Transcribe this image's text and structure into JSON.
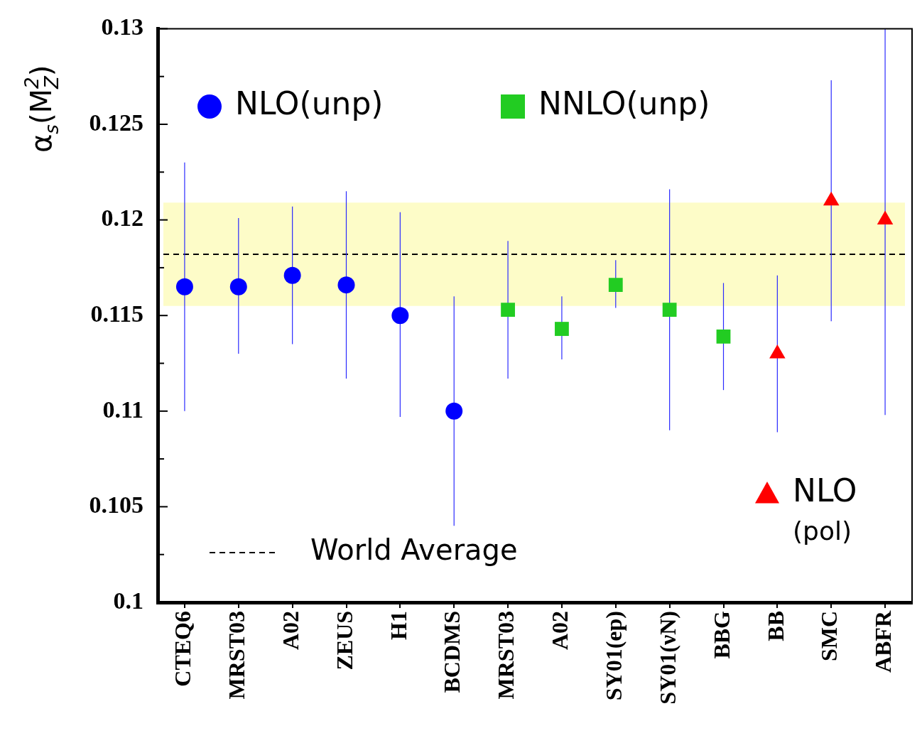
{
  "chart_data": {
    "type": "scatter",
    "ylabel": "α$_{s}$(M$_{Z}$$^{2}$)",
    "categories": [
      "CTEQ6",
      "MRST03",
      "A02",
      "ZEUS",
      "H1",
      "BCDMS",
      "MRST03",
      "A02",
      "SY01(ep)",
      "SY01(νN)",
      "BBG",
      "BB",
      "SMC",
      "ABFR"
    ],
    "series": [
      {
        "name": "NLO(unp)",
        "color": "#0000ff",
        "marker": "circle",
        "values": [
          0.1165,
          0.1165,
          0.1171,
          0.1166,
          0.115,
          0.11,
          null,
          null,
          null,
          null,
          null,
          null,
          null,
          null
        ],
        "errors": [
          [
            0.11,
            0.123
          ],
          [
            0.113,
            0.1201
          ],
          [
            0.1135,
            0.1207
          ],
          [
            0.1117,
            0.1215
          ],
          [
            0.1097,
            0.1204
          ],
          [
            0.104,
            0.116
          ],
          null,
          null,
          null,
          null,
          null,
          null,
          null,
          null
        ]
      },
      {
        "name": "NNLO(unp)",
        "color": "#22cc22",
        "marker": "square",
        "values": [
          null,
          null,
          null,
          null,
          null,
          null,
          0.1153,
          0.1143,
          0.1166,
          0.1153,
          0.1139,
          null,
          null,
          null
        ],
        "errors": [
          null,
          null,
          null,
          null,
          null,
          null,
          [
            0.1117,
            0.1189
          ],
          [
            0.1127,
            0.116
          ],
          [
            0.1154,
            0.1179
          ],
          [
            0.109,
            0.1216
          ],
          [
            0.1111,
            0.1167
          ],
          null,
          null,
          null
        ]
      },
      {
        "name": "NLO (pol)",
        "color": "#ff0000",
        "marker": "triangle",
        "values": [
          null,
          null,
          null,
          null,
          null,
          null,
          null,
          null,
          null,
          null,
          null,
          0.113,
          0.121,
          0.12
        ],
        "errors": [
          null,
          null,
          null,
          null,
          null,
          null,
          null,
          null,
          null,
          null,
          null,
          [
            0.1089,
            0.1171
          ],
          [
            0.1147,
            0.1273
          ],
          [
            0.1098,
            0.13
          ]
        ]
      }
    ],
    "ylim": [
      0.1,
      0.13
    ],
    "yticks": [
      0.1,
      {
        "value": 0.1025,
        "label": null
      },
      0.105,
      {
        "value": 0.1075,
        "label": null
      },
      0.11,
      {
        "value": 0.1125,
        "label": null
      },
      0.115,
      {
        "value": 0.1175,
        "label": null
      },
      0.12,
      {
        "value": 0.1225,
        "label": null
      },
      0.125,
      {
        "value": 0.1275,
        "label": null
      },
      0.13
    ],
    "bands": [
      {
        "axis": "y",
        "from": 0.1155,
        "to": 0.1209,
        "color": "#fdfcc8"
      }
    ],
    "ref_lines": [
      {
        "axis": "y",
        "value": 0.1182,
        "label": "World Average",
        "color": "#000000",
        "line_style": "dashed"
      }
    ],
    "legend": "center"
  }
}
